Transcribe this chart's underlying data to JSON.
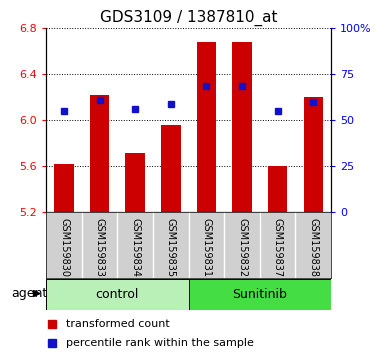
{
  "title": "GDS3109 / 1387810_at",
  "samples": [
    "GSM159830",
    "GSM159833",
    "GSM159834",
    "GSM159835",
    "GSM159831",
    "GSM159832",
    "GSM159837",
    "GSM159838"
  ],
  "red_values": [
    5.62,
    6.22,
    5.72,
    5.96,
    6.68,
    6.68,
    5.6,
    6.2
  ],
  "blue_values": [
    6.08,
    6.18,
    6.1,
    6.14,
    6.3,
    6.3,
    6.08,
    6.16
  ],
  "groups": [
    "control",
    "control",
    "control",
    "control",
    "Sunitinib",
    "Sunitinib",
    "Sunitinib",
    "Sunitinib"
  ],
  "group_colors": [
    "#b8f0b8",
    "#44dd44"
  ],
  "ylim_left": [
    5.2,
    6.8
  ],
  "ylim_right": [
    0,
    100
  ],
  "yticks_left": [
    5.2,
    5.6,
    6.0,
    6.4,
    6.8
  ],
  "yticks_right": [
    0,
    25,
    50,
    75,
    100
  ],
  "ytick_labels_right": [
    "0",
    "25",
    "50",
    "75",
    "100%"
  ],
  "bar_color": "#cc0000",
  "dot_color": "#1111cc",
  "bar_bottom": 5.2,
  "bar_width": 0.55,
  "label_red": "transformed count",
  "label_blue": "percentile rank within the sample",
  "agent_label": "agent",
  "control_label": "control",
  "sunitinib_label": "Sunitinib",
  "title_fontsize": 11,
  "tick_fontsize": 8,
  "legend_fontsize": 8,
  "sample_fontsize": 7,
  "group_fontsize": 9
}
